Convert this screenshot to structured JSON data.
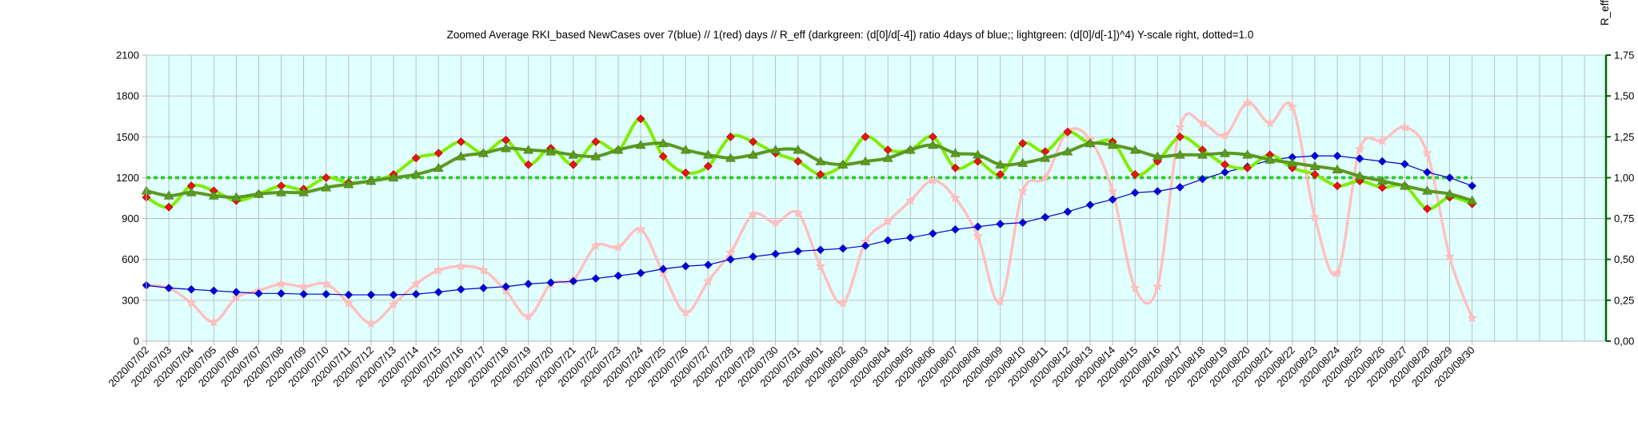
{
  "chart_data": {
    "type": "line",
    "title": "Zoomed Average RKI_based NewCases over 7(blue) // 1(red) days //  R_eff (darkgreen: (d[0]/d[-4]) ratio 4days of blue;; lightgreen: (d[0]/d[-1])^4) Y-scale right, dotted=1.0",
    "y2label": "R_eff",
    "ylim": [
      0,
      2100
    ],
    "y2lim": [
      0,
      1.75
    ],
    "yticks": [
      "0",
      "300",
      "600",
      "900",
      "1200",
      "1500",
      "1800",
      "2100"
    ],
    "y2ticks": [
      "0,00",
      "0,25",
      "0,50",
      "0,75",
      "1,00",
      "1,25",
      "1,50",
      "1,75"
    ],
    "categories": [
      "2020/07/02",
      "2020/07/03",
      "2020/07/04",
      "2020/07/05",
      "2020/07/06",
      "2020/07/07",
      "2020/07/08",
      "2020/07/09",
      "2020/07/10",
      "2020/07/11",
      "2020/07/12",
      "2020/07/13",
      "2020/07/14",
      "2020/07/15",
      "2020/07/16",
      "2020/07/17",
      "2020/07/18",
      "2020/07/19",
      "2020/07/20",
      "2020/07/21",
      "2020/07/22",
      "2020/07/23",
      "2020/07/24",
      "2020/07/25",
      "2020/07/26",
      "2020/07/27",
      "2020/07/28",
      "2020/07/29",
      "2020/07/30",
      "2020/07/31",
      "2020/08/01",
      "2020/08/02",
      "2020/08/03",
      "2020/08/04",
      "2020/08/05",
      "2020/08/06",
      "2020/08/07",
      "2020/08/08",
      "2020/08/09",
      "2020/08/10",
      "2020/08/11",
      "2020/08/12",
      "2020/08/13",
      "2020/08/14",
      "2020/08/15",
      "2020/08/16",
      "2020/08/17",
      "2020/08/18",
      "2020/08/19",
      "2020/08/20",
      "2020/08/21",
      "2020/08/22",
      "2020/08/23",
      "2020/08/24",
      "2020/08/25",
      "2020/08/26",
      "2020/08/27",
      "2020/08/28",
      "2020/08/29",
      "2020/08/30"
    ],
    "grid": true,
    "reference_line_y2": 1.0,
    "series": [
      {
        "axis": "left",
        "color": "#ffc0c0",
        "marker": "star",
        "values": [
          410,
          390,
          280,
          140,
          320,
          370,
          420,
          400,
          420,
          280,
          130,
          270,
          420,
          520,
          550,
          520,
          370,
          180,
          420,
          450,
          700,
          690,
          820,
          500,
          210,
          440,
          650,
          930,
          870,
          940,
          550,
          280,
          730,
          880,
          1030,
          1180,
          1050,
          770,
          290,
          1100,
          1200,
          1540,
          1480,
          1100,
          390,
          400,
          1570,
          1600,
          1510,
          1750,
          1600,
          1720,
          910,
          500,
          1410,
          1470,
          1570,
          1380,
          620,
          170
        ]
      },
      {
        "axis": "left",
        "color": "#0000cc",
        "marker": "diamond",
        "values": [
          410,
          390,
          380,
          370,
          360,
          350,
          350,
          345,
          345,
          340,
          340,
          340,
          345,
          360,
          380,
          390,
          400,
          420,
          430,
          440,
          460,
          480,
          500,
          530,
          550,
          560,
          600,
          620,
          640,
          660,
          670,
          680,
          700,
          740,
          760,
          790,
          820,
          840,
          860,
          870,
          910,
          950,
          1000,
          1040,
          1090,
          1100,
          1130,
          1190,
          1240,
          1280,
          1330,
          1350,
          1360,
          1360,
          1340,
          1320,
          1300,
          1240,
          1200,
          1140
        ]
      },
      {
        "axis": "right",
        "color": "#80ee00",
        "marker": "diamond-red",
        "values": [
          0.88,
          0.82,
          0.95,
          0.92,
          0.86,
          0.9,
          0.95,
          0.93,
          1.0,
          0.97,
          0.98,
          1.02,
          1.12,
          1.15,
          1.22,
          1.15,
          1.23,
          1.08,
          1.18,
          1.08,
          1.22,
          1.17,
          1.36,
          1.13,
          1.03,
          1.07,
          1.25,
          1.22,
          1.15,
          1.1,
          1.02,
          1.08,
          1.25,
          1.17,
          1.17,
          1.25,
          1.06,
          1.1,
          1.02,
          1.21,
          1.16,
          1.28,
          1.21,
          1.22,
          1.02,
          1.1,
          1.25,
          1.17,
          1.08,
          1.06,
          1.14,
          1.06,
          1.02,
          0.95,
          0.98,
          0.94,
          0.95,
          0.81,
          0.88,
          0.84
        ]
      },
      {
        "axis": "right",
        "color": "#5a9a20",
        "marker": "triangle",
        "values": [
          0.92,
          0.89,
          0.91,
          0.89,
          0.88,
          0.9,
          0.91,
          0.91,
          0.94,
          0.96,
          0.98,
          1.0,
          1.02,
          1.06,
          1.13,
          1.15,
          1.18,
          1.17,
          1.16,
          1.14,
          1.13,
          1.17,
          1.2,
          1.21,
          1.17,
          1.14,
          1.12,
          1.14,
          1.17,
          1.17,
          1.1,
          1.08,
          1.1,
          1.12,
          1.17,
          1.2,
          1.15,
          1.14,
          1.08,
          1.09,
          1.12,
          1.16,
          1.21,
          1.2,
          1.17,
          1.13,
          1.14,
          1.14,
          1.15,
          1.14,
          1.11,
          1.09,
          1.07,
          1.05,
          1.01,
          0.98,
          0.95,
          0.92,
          0.9,
          0.86
        ]
      }
    ]
  }
}
